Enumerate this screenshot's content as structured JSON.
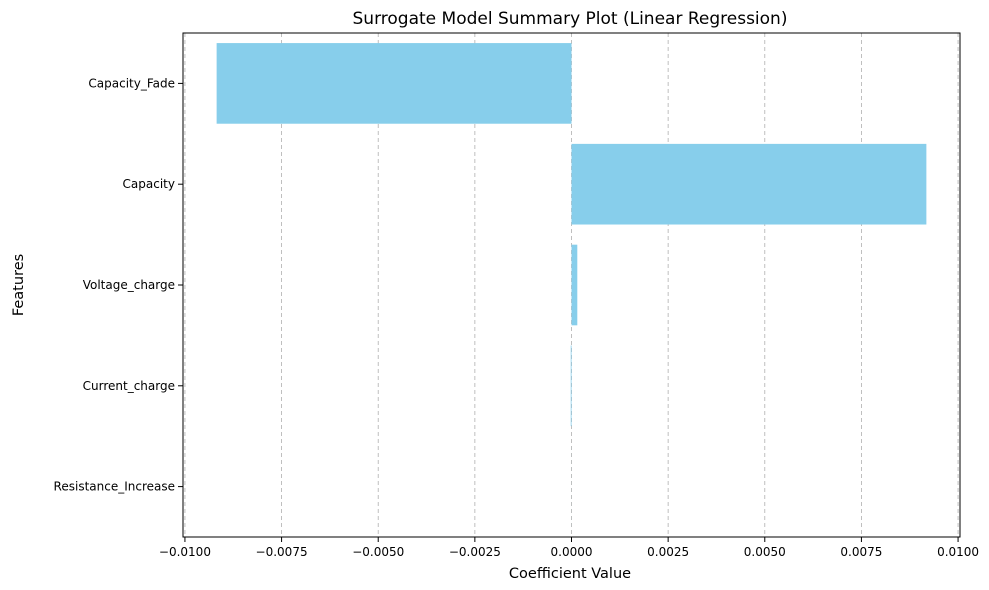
{
  "chart_data": {
    "type": "bar",
    "orientation": "horizontal",
    "title": "Surrogate Model Summary Plot (Linear Regression)",
    "xlabel": "Coefficient Value",
    "ylabel": "Features",
    "categories": [
      "Capacity_Fade",
      "Capacity",
      "Voltage_charge",
      "Current_charge",
      "Resistance_Increase"
    ],
    "values": [
      -0.00918,
      0.00918,
      0.00015,
      -2e-05,
      0.0
    ],
    "xlim": [
      -0.01005,
      0.01005
    ],
    "xticks": [
      -0.01,
      -0.0075,
      -0.005,
      -0.0025,
      0.0,
      0.0025,
      0.005,
      0.0075,
      0.01
    ],
    "xtick_labels": [
      "−0.0100",
      "−0.0075",
      "−0.0050",
      "−0.0025",
      "0.0000",
      "0.0025",
      "0.0050",
      "0.0075",
      "0.0100"
    ],
    "grid": "x-dashed",
    "bar_color": "#87ceeb",
    "grid_color": "#b0b0b0"
  }
}
